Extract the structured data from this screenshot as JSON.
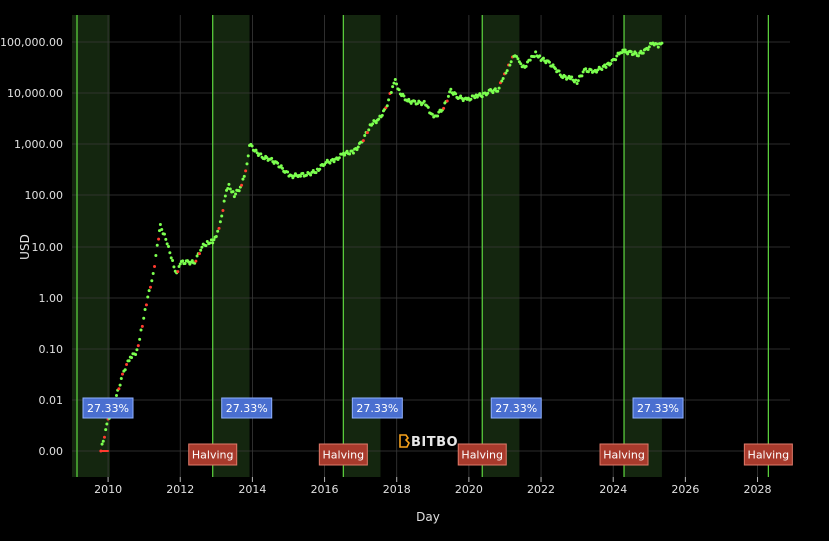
{
  "colors": {
    "background": "#000000",
    "grid": "#3a3a3a",
    "cycle_band": "#14260f",
    "halving_line": "#5fd93f",
    "price_up": "#7cff4f",
    "price_down": "#ff3b2f",
    "cycle_label_bg": "#4a6fd0",
    "halving_label_bg": "#a83a2c"
  },
  "watermark": "BITBO",
  "chart_data": {
    "type": "scatter",
    "xlabel": "Day",
    "ylabel": "USD",
    "yscale": "log",
    "xlim": [
      2009.0,
      2028.9
    ],
    "ylim": [
      0.0006,
      200000
    ],
    "x_ticks": [
      "2010",
      "2012",
      "2014",
      "2016",
      "2018",
      "2020",
      "2022",
      "2024",
      "2026",
      "2028"
    ],
    "y_ticks": [
      {
        "value": 0.001,
        "label": "0.00"
      },
      {
        "value": 0.01,
        "label": "0.01"
      },
      {
        "value": 0.1,
        "label": "0.10"
      },
      {
        "value": 1,
        "label": "1.00"
      },
      {
        "value": 10,
        "label": "10.00"
      },
      {
        "value": 100,
        "label": "100.00"
      },
      {
        "value": 1000,
        "label": "1,000.00"
      },
      {
        "value": 10000,
        "label": "10,000.00"
      },
      {
        "value": 100000,
        "label": "100,000.00"
      }
    ],
    "grid": true,
    "cycle_bands": [
      {
        "start": 2009.0,
        "end": 2010.05,
        "label": "27.33%"
      },
      {
        "start": 2012.9,
        "end": 2013.92,
        "label": "27.33%"
      },
      {
        "start": 2016.52,
        "end": 2017.55,
        "label": "27.33%"
      },
      {
        "start": 2020.37,
        "end": 2021.4,
        "label": "27.33%"
      },
      {
        "start": 2024.3,
        "end": 2025.35,
        "label": "27.33%"
      }
    ],
    "halvings": [
      {
        "x": 2012.9,
        "label": "Halving"
      },
      {
        "x": 2016.52,
        "label": "Halving"
      },
      {
        "x": 2020.37,
        "label": "Halving"
      },
      {
        "x": 2024.3,
        "label": "Halving"
      },
      {
        "x": 2028.3,
        "label": "Halving"
      }
    ],
    "series": [
      {
        "x": [
          2009.8,
          2010.0,
          2010.2,
          2010.4,
          2010.55,
          2010.65,
          2010.8,
          2010.95,
          2011.1,
          2011.25,
          2011.4,
          2011.45,
          2011.6,
          2011.75,
          2011.9,
          2012.0,
          2012.2,
          2012.4,
          2012.6,
          2012.75,
          2012.9,
          2013.0,
          2013.15,
          2013.25,
          2013.35,
          2013.5,
          2013.7,
          2013.85,
          2013.92,
          2014.1,
          2014.3,
          2014.5,
          2014.7,
          2014.9,
          2015.05,
          2015.3,
          2015.5,
          2015.8,
          2016.0,
          2016.3,
          2016.52,
          2016.8,
          2017.0,
          2017.3,
          2017.5,
          2017.7,
          2017.85,
          2017.96,
          2018.1,
          2018.3,
          2018.5,
          2018.8,
          2018.95,
          2019.1,
          2019.3,
          2019.5,
          2019.7,
          2019.95,
          2020.2,
          2020.37,
          2020.6,
          2020.8,
          2020.95,
          2021.1,
          2021.28,
          2021.4,
          2021.55,
          2021.7,
          2021.85,
          2022.0,
          2022.2,
          2022.4,
          2022.6,
          2022.85,
          2023.0,
          2023.2,
          2023.5,
          2023.8,
          2024.0,
          2024.2,
          2024.3,
          2024.5,
          2024.7,
          2024.9,
          2025.1,
          2025.25,
          2025.35
        ],
        "y": [
          0.001,
          0.004,
          0.01,
          0.03,
          0.06,
          0.07,
          0.09,
          0.3,
          1,
          3,
          15,
          25,
          15,
          6,
          3,
          5,
          5,
          5,
          10,
          12,
          13,
          15,
          40,
          100,
          150,
          100,
          150,
          400,
          1000,
          700,
          550,
          500,
          400,
          300,
          230,
          250,
          250,
          300,
          430,
          480,
          650,
          700,
          1000,
          2500,
          3000,
          5000,
          11000,
          17000,
          10000,
          7000,
          6500,
          6300,
          3700,
          3600,
          5200,
          11000,
          8400,
          7200,
          9000,
          9000,
          10800,
          11500,
          19000,
          34000,
          58000,
          38000,
          33000,
          45000,
          60000,
          47000,
          40000,
          30000,
          21000,
          19000,
          16500,
          28000,
          27000,
          34000,
          42000,
          65000,
          65000,
          61000,
          58000,
          68000,
          98000,
          82000,
          95000
        ]
      }
    ]
  }
}
